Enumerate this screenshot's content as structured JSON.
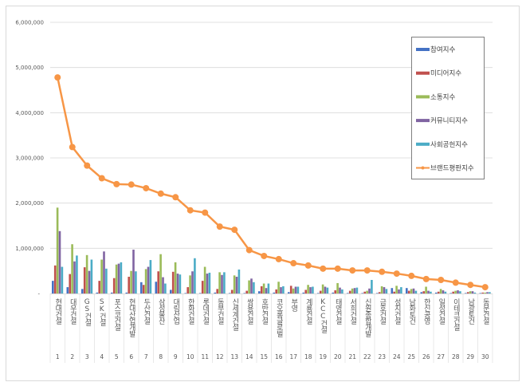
{
  "chart_data": {
    "type": "bar+line",
    "ylim": [
      0,
      6000000
    ],
    "yticks": [
      "-",
      "1,000,000",
      "2,000,000",
      "3,000,000",
      "4,000,000",
      "5,000,000",
      "6,000,000"
    ],
    "grid": true,
    "legend_position": "right",
    "categories": [
      "현대건설",
      "대우건설",
      "GS건설",
      "SK건설",
      "포스코건설",
      "현대산업개발",
      "두산건설",
      "삼성물산",
      "대림산업",
      "한화건설",
      "롯데건설",
      "동부건설",
      "신세계건설",
      "쌍용건설",
      "호반건설",
      "코오롱글로벌",
      "부영",
      "계룡건설",
      "KCC건설",
      "태영건설",
      "서희건설",
      "신원종합개발",
      "금호건설",
      "성지건설",
      "남화토건",
      "한신공영",
      "일성건설",
      "이테크건설",
      "남광토건",
      "동문건설"
    ],
    "ranks": [
      "1",
      "2",
      "3",
      "4",
      "5",
      "6",
      "7",
      "8",
      "9",
      "10",
      "11",
      "12",
      "13",
      "14",
      "15",
      "16",
      "17",
      "18",
      "19",
      "20",
      "21",
      "22",
      "23",
      "24",
      "25",
      "26",
      "27",
      "28",
      "29",
      "30"
    ],
    "series": [
      {
        "name": "참여지수",
        "type": "bar",
        "color": "#4472C4",
        "values": [
          280000,
          140000,
          100000,
          20000,
          20000,
          20000,
          250000,
          260000,
          80000,
          10000,
          10000,
          20000,
          10000,
          10000,
          50000,
          20000,
          30000,
          20000,
          10000,
          20000,
          10000,
          10000,
          10000,
          120000,
          120000,
          30000,
          20000,
          10000,
          10000,
          10000
        ]
      },
      {
        "name": "미디어지수",
        "type": "bar",
        "color": "#C0504D",
        "values": [
          620000,
          430000,
          580000,
          280000,
          340000,
          370000,
          190000,
          490000,
          480000,
          140000,
          280000,
          100000,
          80000,
          60000,
          160000,
          90000,
          170000,
          80000,
          60000,
          70000,
          60000,
          40000,
          30000,
          40000,
          60000,
          50000,
          40000,
          40000,
          30000,
          20000
        ]
      },
      {
        "name": "소통지수",
        "type": "bar",
        "color": "#9BBB59",
        "values": [
          1900000,
          1090000,
          850000,
          750000,
          640000,
          500000,
          540000,
          870000,
          690000,
          400000,
          590000,
          470000,
          400000,
          290000,
          220000,
          260000,
          110000,
          190000,
          200000,
          230000,
          110000,
          60000,
          160000,
          170000,
          100000,
          150000,
          100000,
          60000,
          50000,
          20000
        ]
      },
      {
        "name": "커뮤니티지수",
        "type": "bar",
        "color": "#8064A2",
        "values": [
          1380000,
          710000,
          500000,
          930000,
          660000,
          970000,
          590000,
          360000,
          440000,
          490000,
          440000,
          410000,
          370000,
          330000,
          120000,
          140000,
          150000,
          140000,
          150000,
          130000,
          120000,
          110000,
          140000,
          90000,
          110000,
          60000,
          70000,
          70000,
          50000,
          30000
        ]
      },
      {
        "name": "사회공헌지수",
        "type": "bar",
        "color": "#4BACC6",
        "values": [
          590000,
          840000,
          750000,
          550000,
          690000,
          490000,
          740000,
          220000,
          420000,
          780000,
          460000,
          470000,
          530000,
          250000,
          220000,
          160000,
          150000,
          150000,
          130000,
          90000,
          130000,
          300000,
          100000,
          140000,
          60000,
          40000,
          40000,
          50000,
          20000,
          30000
        ]
      },
      {
        "name": "브랜드평판지수",
        "type": "line",
        "color": "#F79646",
        "values": [
          4780000,
          3240000,
          2830000,
          2550000,
          2420000,
          2410000,
          2330000,
          2210000,
          2130000,
          1840000,
          1790000,
          1480000,
          1410000,
          960000,
          830000,
          760000,
          670000,
          620000,
          550000,
          550000,
          510000,
          510000,
          480000,
          440000,
          390000,
          320000,
          300000,
          240000,
          190000,
          140000
        ]
      }
    ]
  }
}
